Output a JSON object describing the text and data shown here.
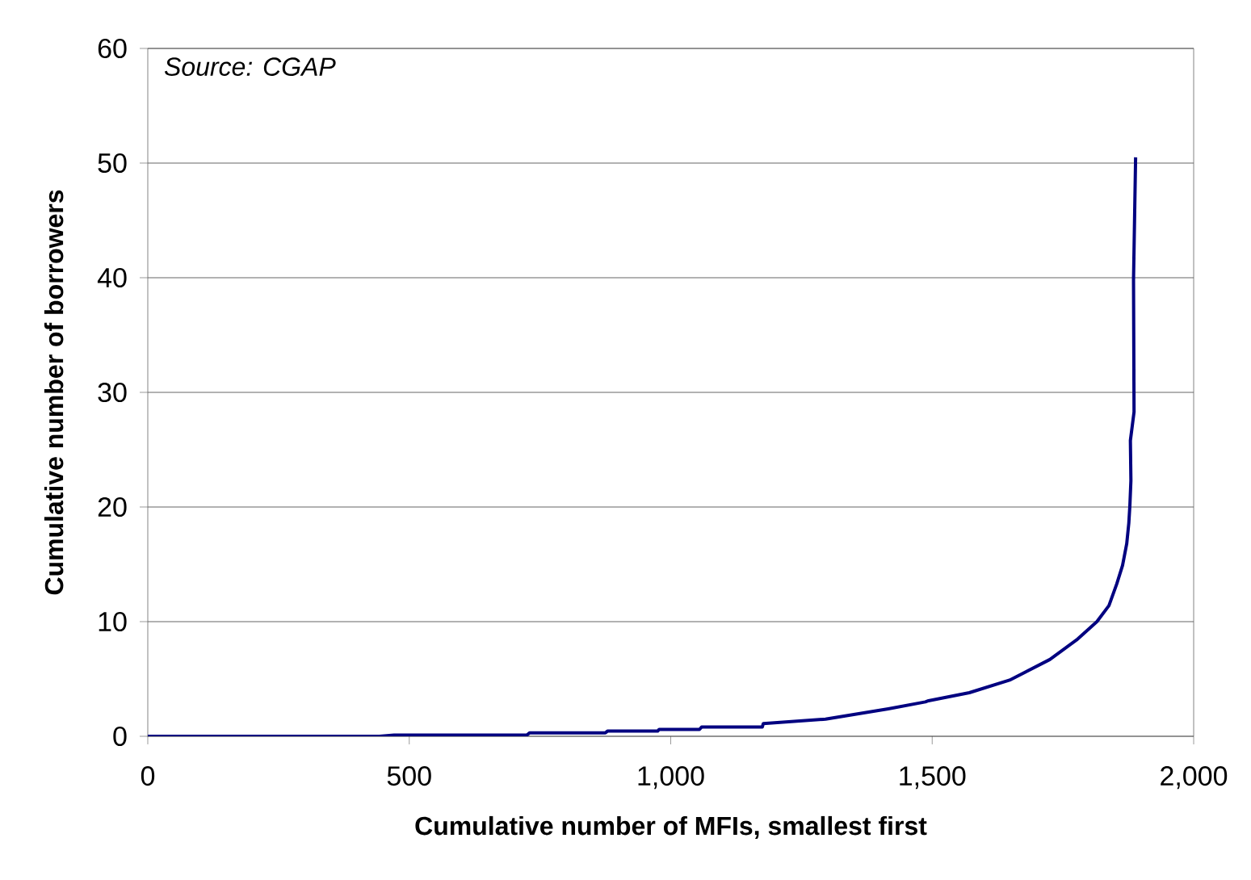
{
  "chart_data": {
    "type": "line",
    "xlabel": "Cumulative number of MFIs, smallest first",
    "ylabel": "Cumulative number of borrowers",
    "annotations": [
      "Source: CGAP"
    ],
    "x": [
      0,
      443,
      471,
      725,
      730,
      875,
      879,
      975,
      978,
      1055,
      1059,
      1175,
      1177,
      1296,
      1416,
      1487,
      1493,
      1571,
      1648,
      1725,
      1776,
      1815,
      1838,
      1853,
      1864,
      1872,
      1876,
      1878,
      1880,
      1879,
      1886,
      1885,
      1889
    ],
    "values": [
      0,
      0,
      0.1,
      0.1,
      0.3,
      0.3,
      0.45,
      0.45,
      0.6,
      0.6,
      0.8,
      0.8,
      1.1,
      1.5,
      2.4,
      3.0,
      3.1,
      3.8,
      4.9,
      6.7,
      8.4,
      10.0,
      11.4,
      13.3,
      14.9,
      16.8,
      18.6,
      20.1,
      22.3,
      25.8,
      28.3,
      39.8,
      50.5
    ],
    "color": "#000080",
    "xlim": [
      0,
      2000
    ],
    "ylim": [
      0,
      60
    ],
    "xticks": [
      0,
      500,
      {
        "value": 1000,
        "label": "1,000"
      },
      {
        "value": 1500,
        "label": "1,500"
      },
      {
        "value": 2000,
        "label": "2,000"
      }
    ],
    "yticks": [
      0,
      10,
      20,
      30,
      40,
      50,
      60
    ],
    "grid": "y",
    "marker": "none",
    "line_style": "solid"
  }
}
